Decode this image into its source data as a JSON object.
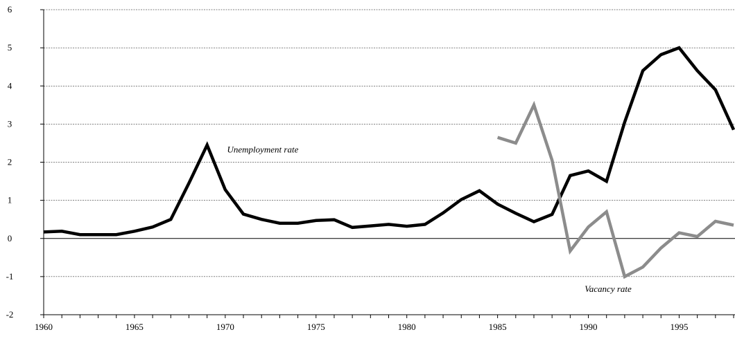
{
  "chart_data": {
    "type": "line",
    "title": "",
    "xlabel": "",
    "ylabel": "",
    "xlim": [
      1960,
      1998
    ],
    "ylim": [
      -2,
      6
    ],
    "x_ticks": [
      1960,
      1965,
      1970,
      1975,
      1980,
      1985,
      1990,
      1995
    ],
    "y_ticks": [
      6,
      5,
      4,
      3,
      2,
      1,
      0,
      -1,
      -2
    ],
    "grid": "horizontal dashed",
    "series": [
      {
        "name": "Unemployment rate",
        "color": "#000000",
        "points": [
          [
            1960,
            0.17
          ],
          [
            1961,
            0.19
          ],
          [
            1962,
            0.1
          ],
          [
            1963,
            0.1
          ],
          [
            1964,
            0.1
          ],
          [
            1965,
            0.19
          ],
          [
            1966,
            0.3
          ],
          [
            1967,
            0.5
          ],
          [
            1968,
            1.45
          ],
          [
            1969,
            2.45
          ],
          [
            1970,
            1.28
          ],
          [
            1971,
            0.64
          ],
          [
            1972,
            0.5
          ],
          [
            1973,
            0.4
          ],
          [
            1974,
            0.4
          ],
          [
            1975,
            0.47
          ],
          [
            1976,
            0.49
          ],
          [
            1977,
            0.29
          ],
          [
            1978,
            0.33
          ],
          [
            1979,
            0.37
          ],
          [
            1980,
            0.32
          ],
          [
            1981,
            0.37
          ],
          [
            1982,
            0.67
          ],
          [
            1983,
            1.02
          ],
          [
            1984,
            1.25
          ],
          [
            1985,
            0.9
          ],
          [
            1986,
            0.66
          ],
          [
            1987,
            0.44
          ],
          [
            1988,
            0.63
          ],
          [
            1989,
            1.65
          ],
          [
            1990,
            1.77
          ],
          [
            1991,
            1.5
          ],
          [
            1992,
            3.05
          ],
          [
            1993,
            4.4
          ],
          [
            1994,
            4.82
          ],
          [
            1995,
            5.0
          ],
          [
            1996,
            4.4
          ],
          [
            1997,
            3.9
          ],
          [
            1998,
            2.85
          ]
        ]
      },
      {
        "name": "Vacancy rate",
        "color": "#8c8c8c",
        "points": [
          [
            1985,
            2.65
          ],
          [
            1986,
            2.5
          ],
          [
            1987,
            3.5
          ],
          [
            1988,
            2.05
          ],
          [
            1989,
            -0.33
          ],
          [
            1990,
            0.3
          ],
          [
            1991,
            0.7
          ],
          [
            1992,
            -1.0
          ],
          [
            1993,
            -0.75
          ],
          [
            1994,
            -0.25
          ],
          [
            1995,
            0.15
          ],
          [
            1996,
            0.05
          ],
          [
            1997,
            0.45
          ],
          [
            1998,
            0.35
          ]
        ]
      }
    ],
    "annotations": [
      {
        "text": "Unemployment rate",
        "x": 1970.1,
        "y": 2.25,
        "series": 0
      },
      {
        "text": "Vacancy rate",
        "x": 1989.8,
        "y": -1.4,
        "series": 1
      }
    ]
  }
}
